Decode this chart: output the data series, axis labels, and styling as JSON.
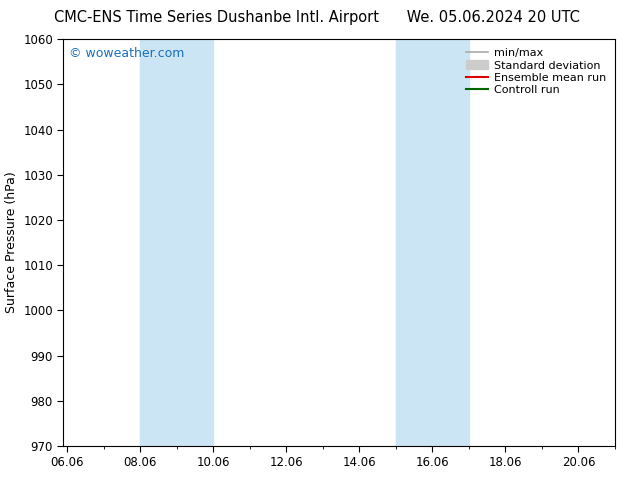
{
  "title_left": "CMC-ENS Time Series Dushanbe Intl. Airport",
  "title_right": "We. 05.06.2024 20 UTC",
  "ylabel": "Surface Pressure (hPa)",
  "ylim": [
    970,
    1060
  ],
  "yticks": [
    970,
    980,
    990,
    1000,
    1010,
    1020,
    1030,
    1040,
    1050,
    1060
  ],
  "xtick_labels": [
    "06.06",
    "08.06",
    "10.06",
    "12.06",
    "14.06",
    "16.06",
    "18.06",
    "20.06"
  ],
  "xtick_positions": [
    0,
    2,
    4,
    6,
    8,
    10,
    12,
    14
  ],
  "xlim": [
    -0.1,
    15.0
  ],
  "shaded_regions": [
    {
      "xmin": 2.0,
      "xmax": 4.0,
      "color": "#cce5f5"
    },
    {
      "xmin": 9.0,
      "xmax": 11.0,
      "color": "#cce5f5"
    }
  ],
  "watermark": "© woweather.com",
  "watermark_color": "#1a6fbd",
  "legend_entries": [
    {
      "label": "min/max",
      "color": "#aaaaaa",
      "lw": 1.2,
      "type": "line"
    },
    {
      "label": "Standard deviation",
      "color": "#cccccc",
      "lw": 8,
      "type": "patch"
    },
    {
      "label": "Ensemble mean run",
      "color": "#dd0000",
      "lw": 1.5,
      "type": "line"
    },
    {
      "label": "Controll run",
      "color": "#006600",
      "lw": 1.5,
      "type": "line"
    }
  ],
  "bg_color": "#ffffff",
  "plot_bg_color": "#ffffff",
  "border_color": "#000000",
  "title_fontsize": 10.5,
  "tick_fontsize": 8.5,
  "ylabel_fontsize": 9,
  "legend_fontsize": 8,
  "watermark_fontsize": 9
}
